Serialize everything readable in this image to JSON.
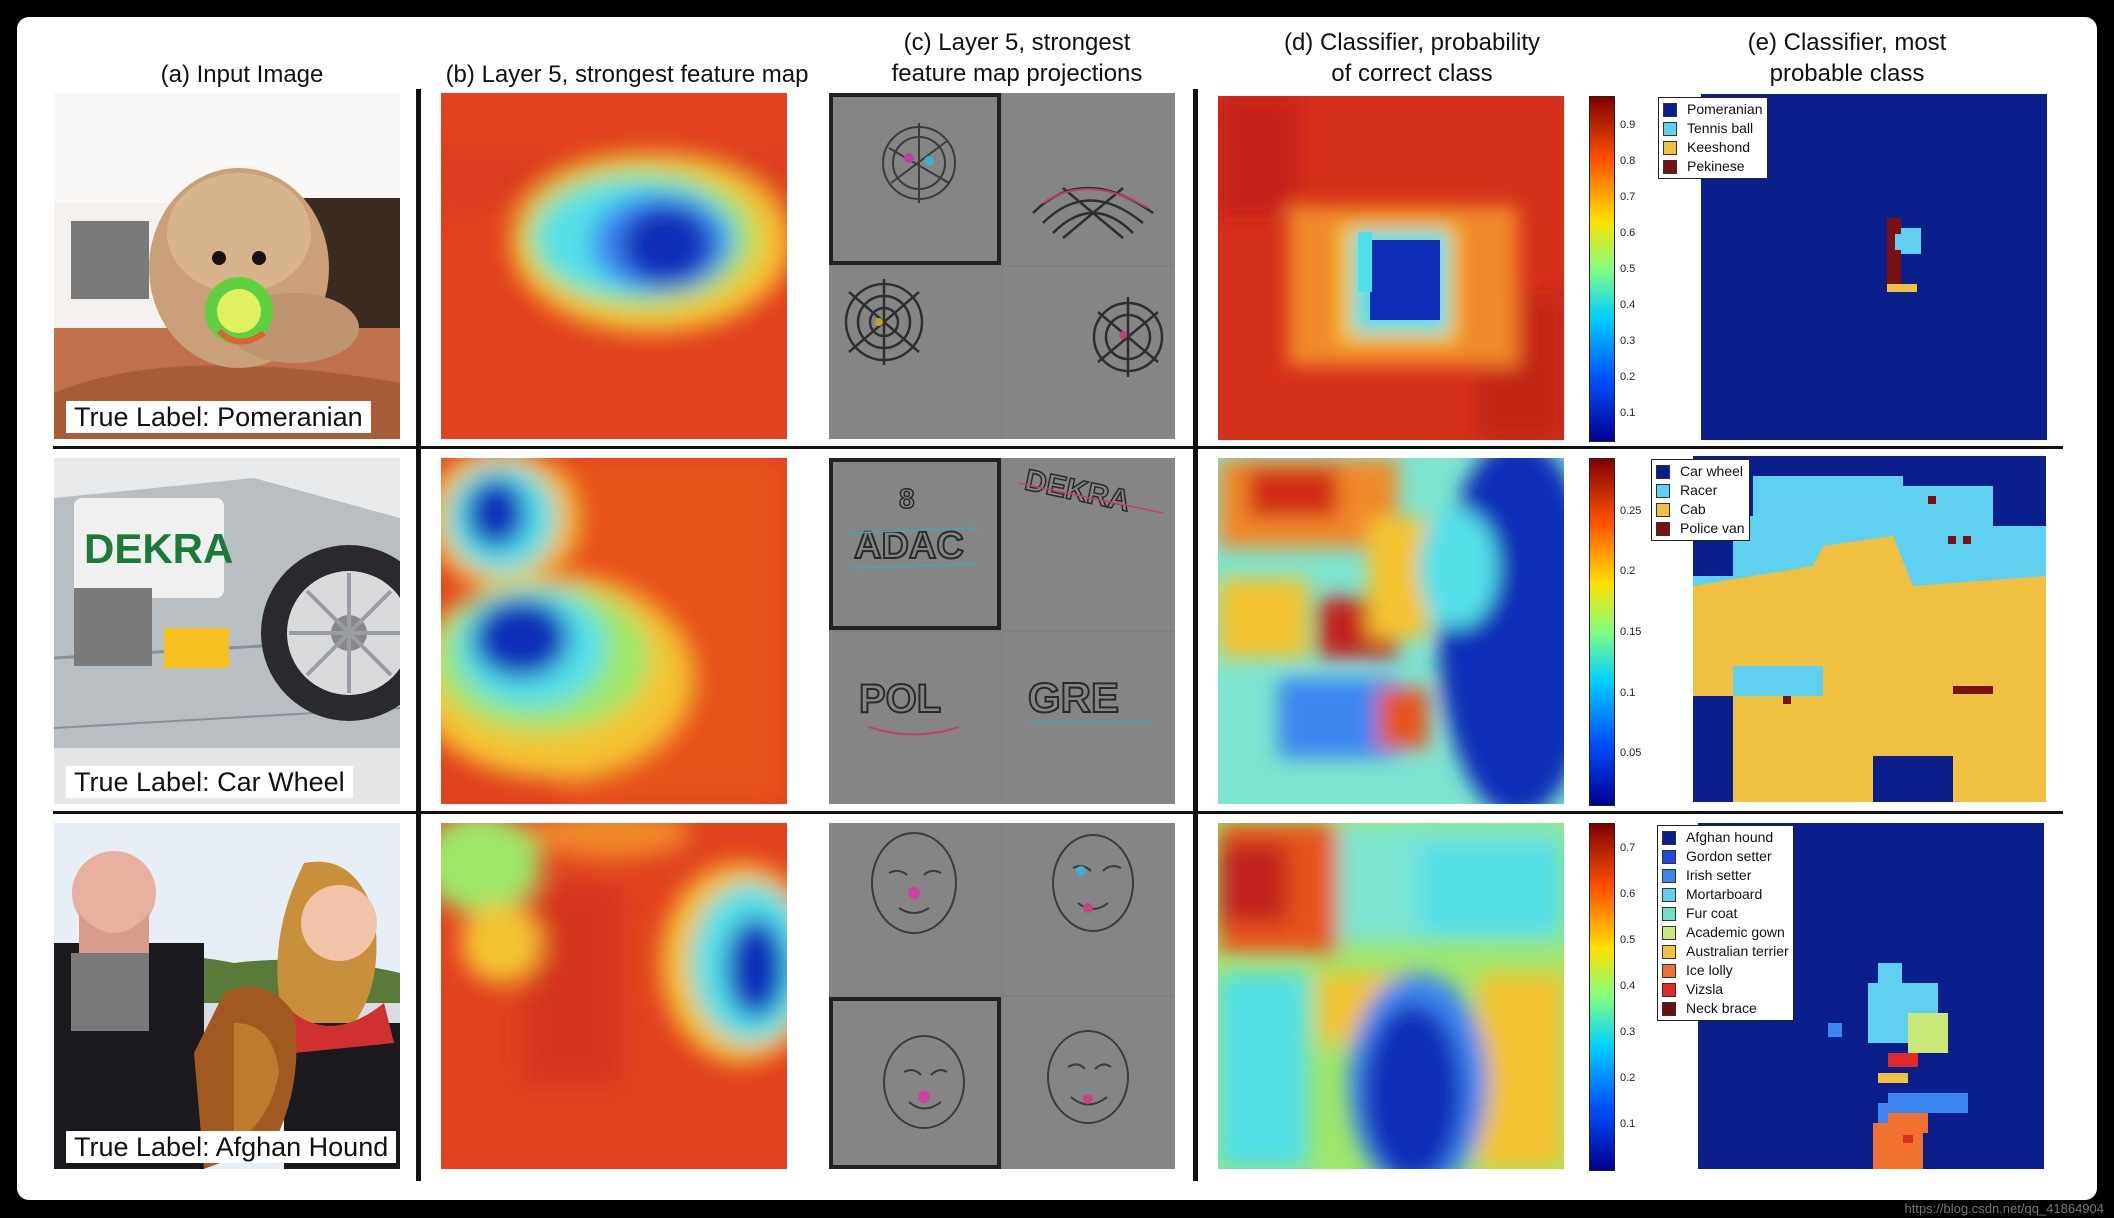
{
  "columns": [
    {
      "title": "(a) Input Image"
    },
    {
      "title": "(b) Layer 5, strongest feature map"
    },
    {
      "title": "(c) Layer 5, strongest\nfeature map projections"
    },
    {
      "title": "(d) Classifier, probability\nof correct class"
    },
    {
      "title": "(e) Classifier, most\nprobable class"
    }
  ],
  "rows": [
    {
      "label": "True Label: Pomeranian",
      "photo_text": "",
      "colorbar_ticks": [
        "0.9",
        "0.8",
        "0.7",
        "0.6",
        "0.5",
        "0.4",
        "0.3",
        "0.2",
        "0.1"
      ],
      "legend": [
        {
          "name": "Pomeranian",
          "color": "#0a1e8c"
        },
        {
          "name": "Tennis ball",
          "color": "#5fd0f0"
        },
        {
          "name": "Keeshond",
          "color": "#f0c040"
        },
        {
          "name": "Pekinese",
          "color": "#7a1010"
        }
      ],
      "selected_projection": 0
    },
    {
      "label": "True Label: Car Wheel",
      "photo_text": "DEKRA",
      "colorbar_ticks": [
        "0.25",
        "0.2",
        "0.15",
        "0.1",
        "0.05"
      ],
      "legend": [
        {
          "name": "Car wheel",
          "color": "#0a1e8c"
        },
        {
          "name": "Racer",
          "color": "#5fd0f0"
        },
        {
          "name": "Cab",
          "color": "#f0c040"
        },
        {
          "name": "Police van",
          "color": "#7a1010"
        }
      ],
      "selected_projection": 0
    },
    {
      "label": "True Label: Afghan Hound",
      "photo_text": "",
      "colorbar_ticks": [
        "0.7",
        "0.6",
        "0.5",
        "0.4",
        "0.3",
        "0.2",
        "0.1"
      ],
      "legend": [
        {
          "name": "Afghan hound",
          "color": "#0a1e8c"
        },
        {
          "name": "Gordon setter",
          "color": "#1f48e0"
        },
        {
          "name": "Irish setter",
          "color": "#3c86f0"
        },
        {
          "name": "Mortarboard",
          "color": "#5fd0f0"
        },
        {
          "name": "Fur coat",
          "color": "#70e0c0"
        },
        {
          "name": "Academic gown",
          "color": "#c8e878"
        },
        {
          "name": "Australian terrier",
          "color": "#f0c040"
        },
        {
          "name": "Ice lolly",
          "color": "#f07030"
        },
        {
          "name": "Vizsla",
          "color": "#e02a2a"
        },
        {
          "name": "Neck brace",
          "color": "#6a1010"
        }
      ],
      "selected_projection": 2
    }
  ],
  "projection_texts": {
    "car_top_left": "ADAC",
    "car_top_left_num": "8",
    "car_top_right": "DEKRA",
    "car_bottom_left": "POL",
    "car_bottom_right": "GRE"
  },
  "watermark": "https://blog.csdn.net/qq_41864904",
  "colors": {
    "jet_red": "#e2411f",
    "jet_blue": "#0d2db8",
    "dark_blue": "#0a1e8c"
  }
}
